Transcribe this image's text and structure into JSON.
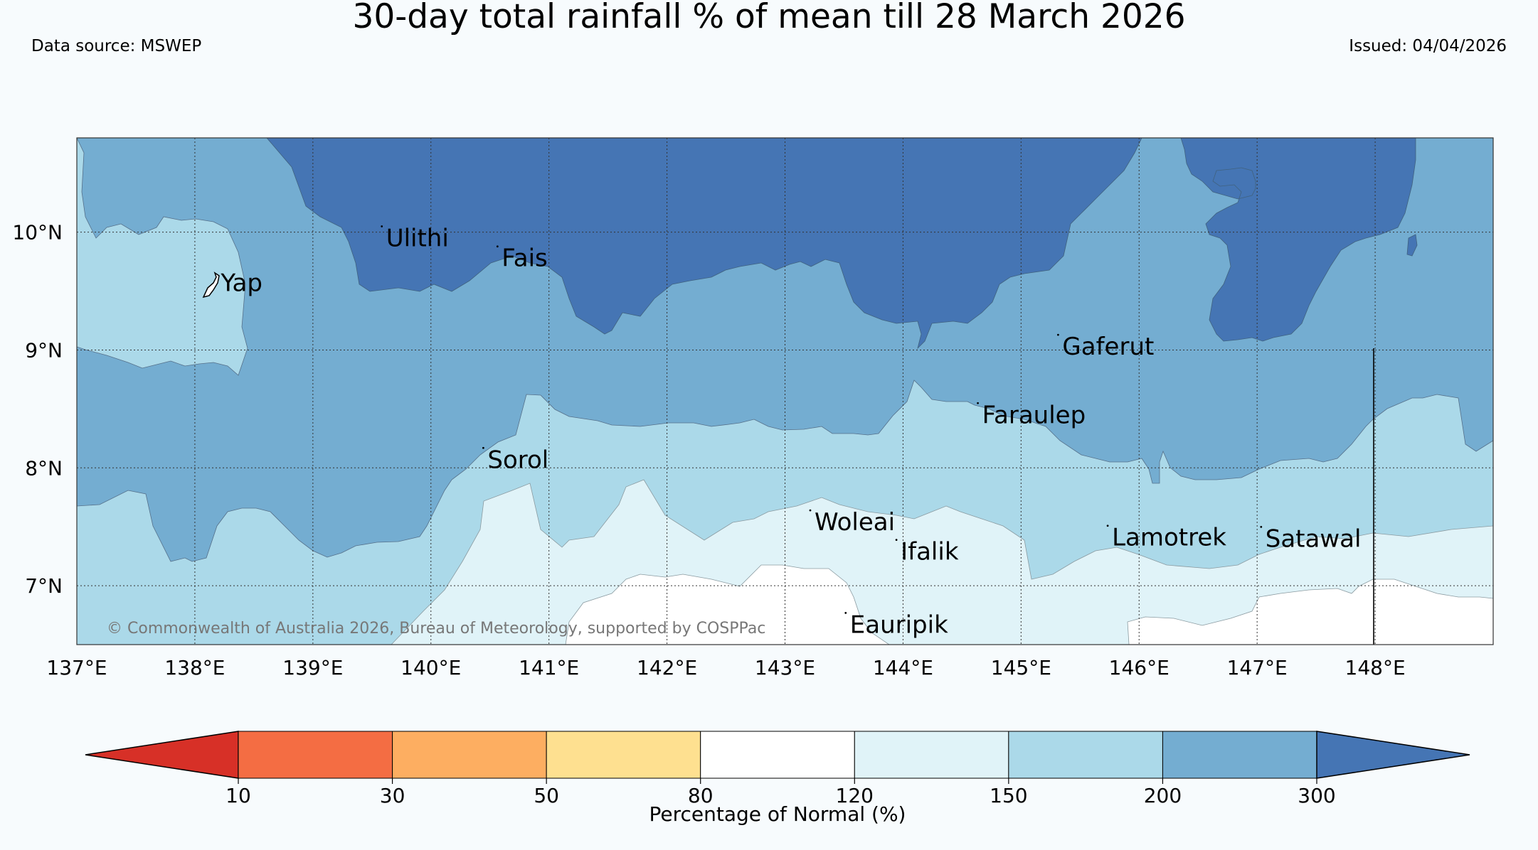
{
  "header": {
    "title": "30-day total rainfall % of mean till 28 March 2026",
    "source": "Data source: MSWEP",
    "issued": "Issued: 04/04/2026"
  },
  "map": {
    "lon_range": [
      137.0,
      149.0
    ],
    "lat_range": [
      6.5,
      10.8
    ],
    "lon_ticks": [
      {
        "value": 137,
        "label": "137°E"
      },
      {
        "value": 138,
        "label": "138°E"
      },
      {
        "value": 139,
        "label": "139°E"
      },
      {
        "value": 140,
        "label": "140°E"
      },
      {
        "value": 141,
        "label": "141°E"
      },
      {
        "value": 142,
        "label": "142°E"
      },
      {
        "value": 143,
        "label": "143°E"
      },
      {
        "value": 144,
        "label": "144°E"
      },
      {
        "value": 145,
        "label": "145°E"
      },
      {
        "value": 146,
        "label": "146°E"
      },
      {
        "value": 147,
        "label": "147°E"
      },
      {
        "value": 148,
        "label": "148°E"
      }
    ],
    "lat_ticks": [
      {
        "value": 10,
        "label": "10°N"
      },
      {
        "value": 9,
        "label": "9°N"
      },
      {
        "value": 8,
        "label": "8°N"
      },
      {
        "value": 7,
        "label": "7°N"
      }
    ],
    "places": [
      {
        "name": "Yap",
        "lon": 138.22,
        "lat": 9.5
      },
      {
        "name": "Ulithi",
        "lon": 139.62,
        "lat": 9.88
      },
      {
        "name": "Fais",
        "lon": 140.6,
        "lat": 9.71
      },
      {
        "name": "Sorol",
        "lon": 140.48,
        "lat": 8.0
      },
      {
        "name": "Gaferut",
        "lon": 145.35,
        "lat": 8.96
      },
      {
        "name": "Faraulep",
        "lon": 144.67,
        "lat": 8.38
      },
      {
        "name": "Woleai",
        "lon": 143.25,
        "lat": 7.47
      },
      {
        "name": "Ifalik",
        "lon": 143.98,
        "lat": 7.22
      },
      {
        "name": "Lamotrek",
        "lon": 145.77,
        "lat": 7.34
      },
      {
        "name": "Satawal",
        "lon": 147.07,
        "lat": 7.33
      },
      {
        "name": "Eauripik",
        "lon": 143.55,
        "lat": 6.6
      }
    ],
    "copyright": "© Commonwealth of Australia 2026, Bureau of Meteorology, supported by COSPPac"
  },
  "legend": {
    "title": "Percentage of Normal (%)",
    "boundaries": [
      "10",
      "30",
      "50",
      "80",
      "120",
      "150",
      "200",
      "300"
    ],
    "colors": [
      "#d73027",
      "#f46d43",
      "#fdae61",
      "#fee090",
      "#ffffff",
      "#e0f3f8",
      "#abd9e9",
      "#74add1",
      "#4575b4"
    ]
  }
}
